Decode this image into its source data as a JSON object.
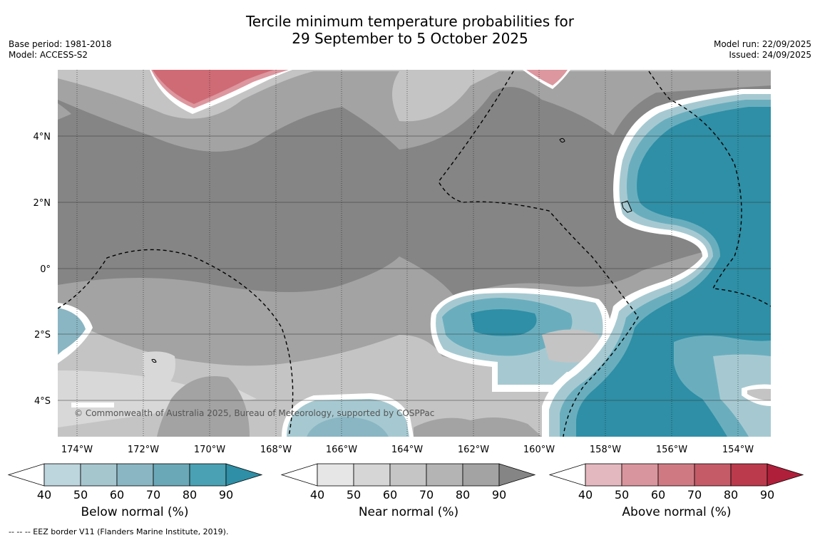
{
  "title_line1": "Tercile minimum temperature probabilities for",
  "title_line2": "29 September to 5 October 2025",
  "meta": {
    "base_period": "Base period: 1981-2018",
    "model": "Model: ACCESS-S2",
    "model_run": "Model run: 22/09/2025",
    "issued": "Issued: 24/09/2025"
  },
  "map": {
    "lon_labels": [
      "174°W",
      "172°W",
      "170°W",
      "168°W",
      "166°W",
      "164°W",
      "162°W",
      "160°W",
      "158°W",
      "156°W",
      "154°W"
    ],
    "lat_labels": [
      "4°N",
      "2°N",
      "0°",
      "2°S",
      "4°S"
    ],
    "copyright": "© Commonwealth of Australia 2025, Bureau of Meteorology, supported by COSPPac",
    "colors": {
      "near_dark": "#858585",
      "near_mid": "#a3a3a3",
      "near_light": "#c4c4c4",
      "near_lighter": "#d8d8d8",
      "below_deep": "#2e8fa6",
      "below_mid": "#6aaebe",
      "below_light": "#a6c9d1",
      "above_mid": "#cf6b75",
      "above_light": "#dc979f"
    }
  },
  "colorbars": [
    {
      "label": "Below normal (%)",
      "ticks": [
        "40",
        "50",
        "60",
        "70",
        "80",
        "90"
      ],
      "colors": [
        "#ffffff",
        "#bdd5dc",
        "#a6c6ce",
        "#8ab6c3",
        "#6aa8b8",
        "#4aa1b3",
        "#2e8fa6"
      ]
    },
    {
      "label": "Near normal (%)",
      "ticks": [
        "40",
        "50",
        "60",
        "70",
        "80",
        "90"
      ],
      "colors": [
        "#ffffff",
        "#e6e6e6",
        "#d6d6d6",
        "#c5c5c5",
        "#b4b4b4",
        "#a3a3a3",
        "#858585"
      ]
    },
    {
      "label": "Above normal (%)",
      "ticks": [
        "40",
        "50",
        "60",
        "70",
        "80",
        "90"
      ],
      "colors": [
        "#ffffff",
        "#e3b8be",
        "#d9959d",
        "#cf7a83",
        "#c55b67",
        "#bb3a4b",
        "#b01f3a"
      ]
    }
  ],
  "footnote": "--  --  -- EEZ border V11 (Flanders Marine Institute, 2019)."
}
